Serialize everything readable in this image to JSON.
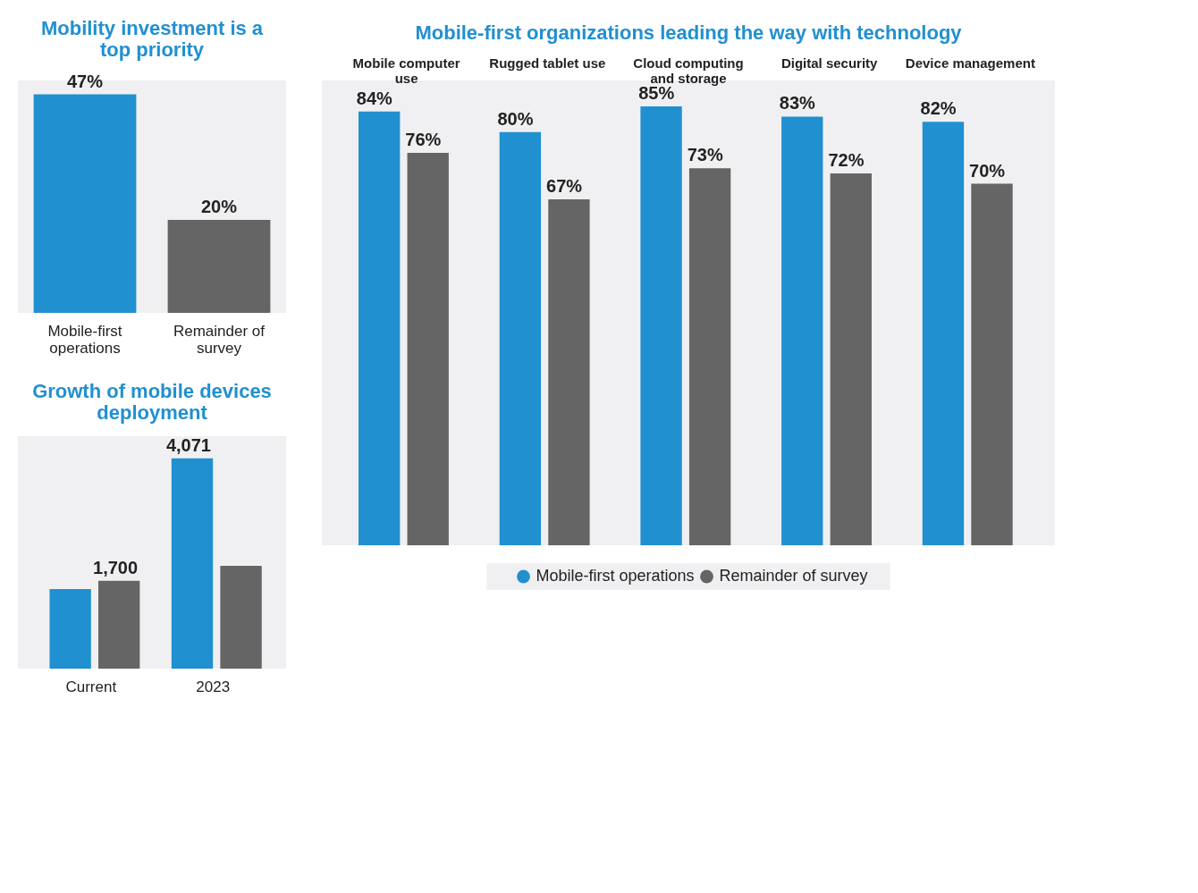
{
  "chart_data": [
    {
      "type": "bar",
      "title": "Mobility investment is a top priority",
      "categories": [
        "Mobile-first operations",
        "Remainder of survey"
      ],
      "values": [
        47,
        20
      ],
      "colors": [
        "#2190d0",
        "#646564"
      ],
      "value_labels": [
        "47%",
        "20%"
      ]
    },
    {
      "type": "bar",
      "title": "Growth of mobile devices deployment",
      "categories": [
        "Current",
        "2023"
      ],
      "series": [
        {
          "color": "#2190d0",
          "values": [
            1540,
            4071
          ],
          "value_labels": [
            null,
            "4,071"
          ]
        },
        {
          "color": "#646564",
          "values": [
            1700,
            1990
          ],
          "value_labels": [
            "1,700",
            null
          ]
        }
      ]
    },
    {
      "type": "bar",
      "title": "Mobile-first organizations leading the way with technology",
      "categories": [
        "Mobile computer use",
        "Rugged tablet use",
        "Cloud computing and storage",
        "Digital security",
        "Device management"
      ],
      "legend": "bottom",
      "series": [
        {
          "name": "Mobile-first operations",
          "color": "#2190d0",
          "values": [
            84,
            80,
            85,
            83,
            82
          ],
          "value_labels": [
            "84%",
            "80%",
            "85%",
            "83%",
            "82%"
          ]
        },
        {
          "name": "Remainder of survey",
          "color": "#646564",
          "values": [
            76,
            67,
            73,
            72,
            70
          ],
          "value_labels": [
            "76%",
            "67%",
            "73%",
            "72%",
            "70%"
          ]
        }
      ]
    }
  ]
}
